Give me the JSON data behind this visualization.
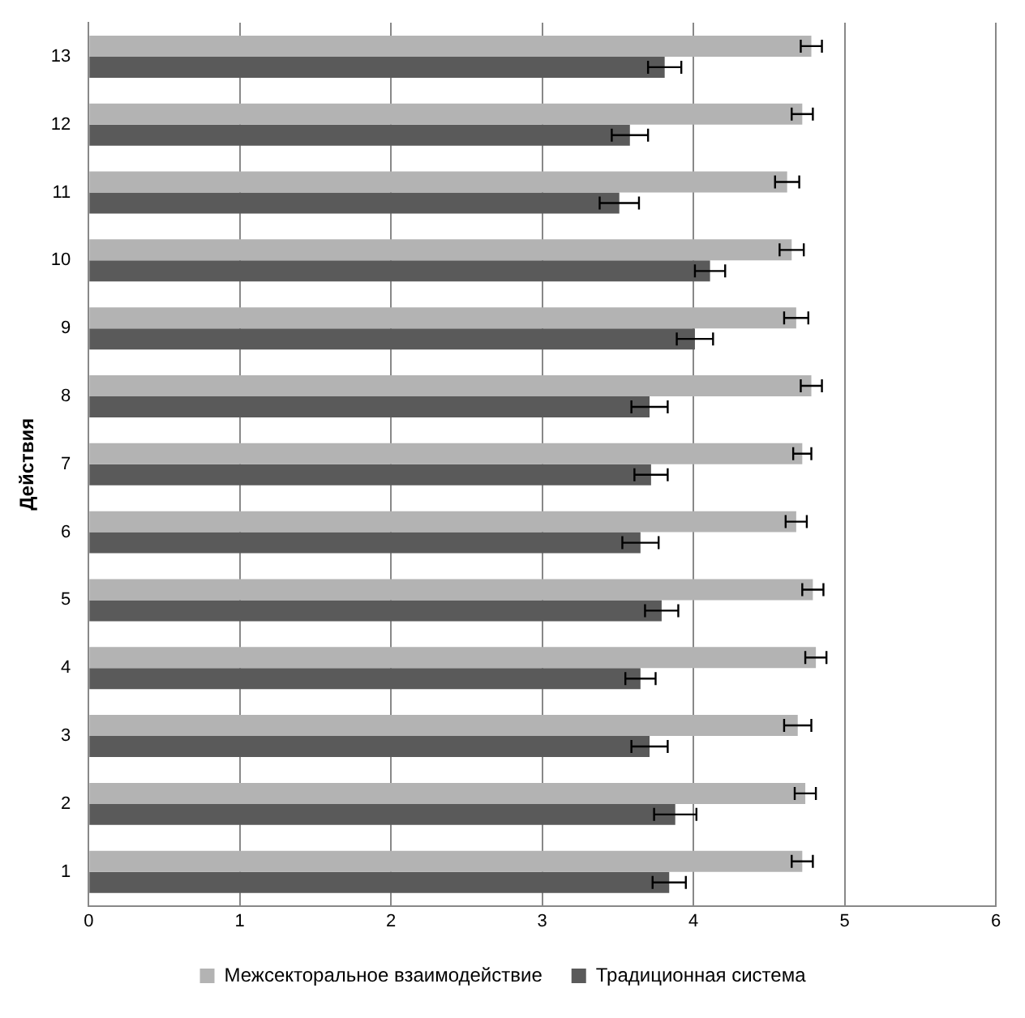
{
  "chart_data": {
    "type": "bar",
    "orientation": "horizontal",
    "ylabel": "Действия",
    "categories": [
      "13",
      "12",
      "11",
      "10",
      "9",
      "8",
      "7",
      "6",
      "5",
      "4",
      "3",
      "2",
      "1"
    ],
    "series": [
      {
        "name": "Межсекторальное взаимодействие",
        "color": "#b3b3b3",
        "values": [
          4.78,
          4.72,
          4.62,
          4.65,
          4.68,
          4.78,
          4.72,
          4.68,
          4.79,
          4.81,
          4.69,
          4.74,
          4.72
        ],
        "errors": [
          0.07,
          0.07,
          0.08,
          0.08,
          0.08,
          0.07,
          0.06,
          0.07,
          0.07,
          0.07,
          0.09,
          0.07,
          0.07
        ]
      },
      {
        "name": "Традиционная система",
        "color": "#5a5a5a",
        "values": [
          3.81,
          3.58,
          3.51,
          4.11,
          4.01,
          3.71,
          3.72,
          3.65,
          3.79,
          3.65,
          3.71,
          3.88,
          3.84
        ],
        "errors": [
          0.11,
          0.12,
          0.13,
          0.1,
          0.12,
          0.12,
          0.11,
          0.12,
          0.11,
          0.1,
          0.12,
          0.14,
          0.11
        ]
      }
    ],
    "xlim": [
      0,
      6
    ],
    "xticks": [
      0,
      1,
      2,
      3,
      4,
      5,
      6
    ],
    "grid": "x",
    "legend": "bottom"
  }
}
